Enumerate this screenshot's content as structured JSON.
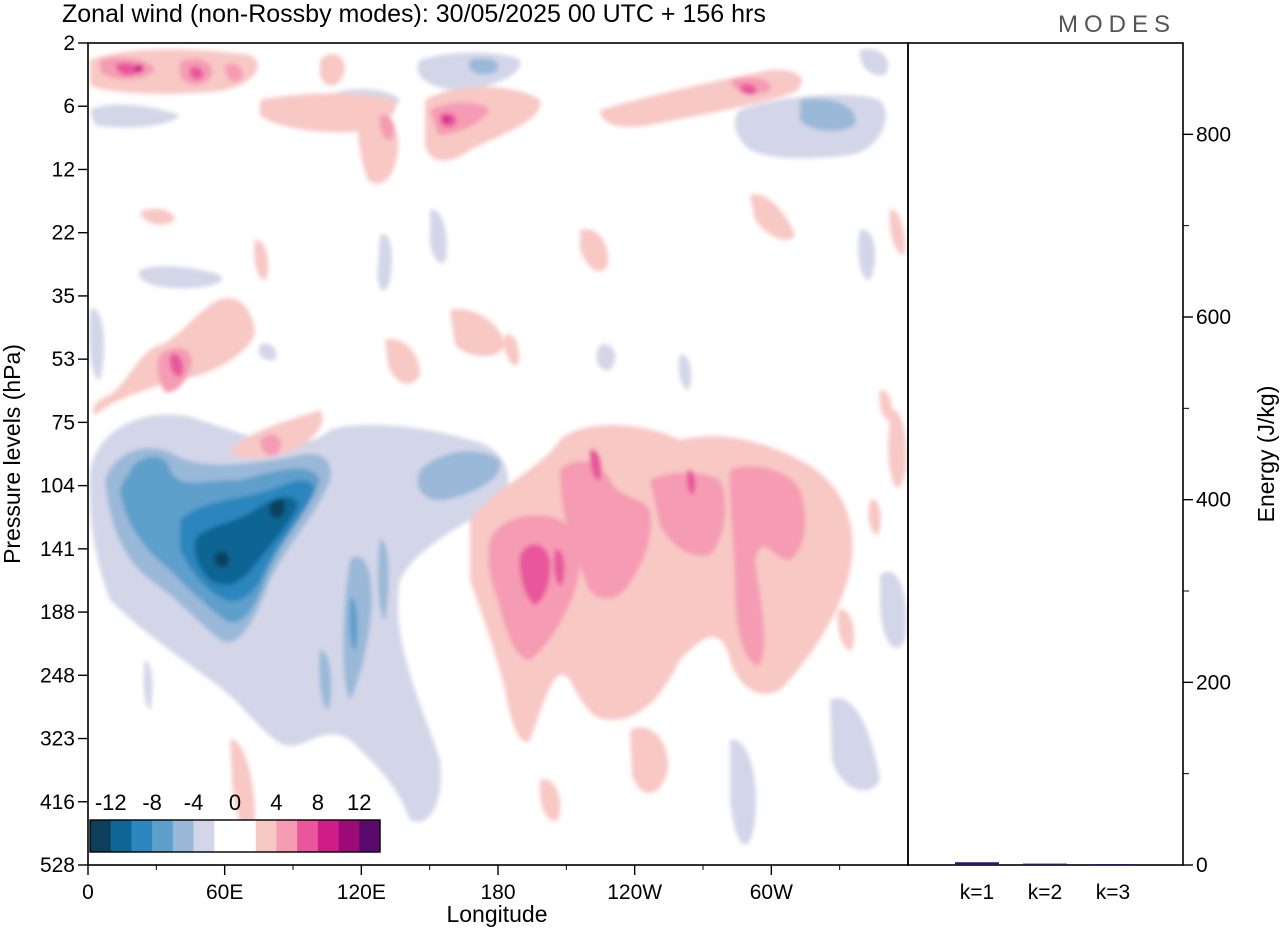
{
  "title": "Zonal wind (non-Rossby modes):  30/05/2025  00 UTC  + 156 hrs",
  "logo": "MODES",
  "colors": {
    "neg": [
      "#0b3f5c",
      "#0f6594",
      "#2b86bd",
      "#5f9fcb",
      "#9ab8d8",
      "#d3d6e8"
    ],
    "pos": [
      "#f8c8c5",
      "#f59bb3",
      "#e9569b",
      "#cf1d87",
      "#9c0a78",
      "#5a0a6c"
    ],
    "bar": "#1a1a6e"
  },
  "chart_data": [
    {
      "type": "heatmap",
      "title": "Zonal wind (non-Rossby modes):  30/05/2025  00 UTC  + 156 hrs",
      "xlabel": "Longitude",
      "ylabel": "Pressure levels (hPa)",
      "x_ticks": [
        "0",
        "60E",
        "120E",
        "180",
        "120W",
        "60W"
      ],
      "y_ticks": [
        "2",
        "6",
        "12",
        "22",
        "35",
        "53",
        "75",
        "104",
        "141",
        "188",
        "248",
        "323",
        "416",
        "528"
      ],
      "xlim": [
        0,
        360
      ],
      "colorbar": {
        "labels": [
          "-12",
          "-8",
          "-4",
          "0",
          "4",
          "8",
          "12"
        ],
        "levels": [
          -14,
          -12,
          -10,
          -8,
          -6,
          -4,
          -2,
          2,
          4,
          6,
          8,
          10,
          12,
          14
        ]
      },
      "features": [
        {
          "lon": 65,
          "level": 141,
          "value": -10
        },
        {
          "lon": 80,
          "level": 130,
          "value": -12
        },
        {
          "lon": 35,
          "level": 110,
          "value": -7
        },
        {
          "lon": 120,
          "level": 200,
          "value": -4
        },
        {
          "lon": 145,
          "level": 104,
          "value": -5
        },
        {
          "lon": 195,
          "level": 160,
          "value": 7
        },
        {
          "lon": 225,
          "level": 120,
          "value": 7
        },
        {
          "lon": 265,
          "level": 115,
          "value": 6
        },
        {
          "lon": 235,
          "level": 250,
          "value": 3
        },
        {
          "lon": 295,
          "level": 200,
          "value": 4
        },
        {
          "lon": 150,
          "level": 7,
          "value": 8
        },
        {
          "lon": 20,
          "level": 3,
          "value": 8
        },
        {
          "lon": 45,
          "level": 3,
          "value": 7
        },
        {
          "lon": 290,
          "level": 5,
          "value": 6
        },
        {
          "lon": 330,
          "level": 6,
          "value": -5
        },
        {
          "lon": 40,
          "level": 55,
          "value": 5
        }
      ]
    },
    {
      "type": "bar",
      "categories": [
        "k=1",
        "k=2",
        "k=3"
      ],
      "values": [
        3,
        1.5,
        1
      ],
      "ylabel": "Energy (J/kg)",
      "ylim": [
        0,
        900
      ],
      "y_ticks": [
        0,
        200,
        400,
        600,
        800
      ]
    }
  ]
}
